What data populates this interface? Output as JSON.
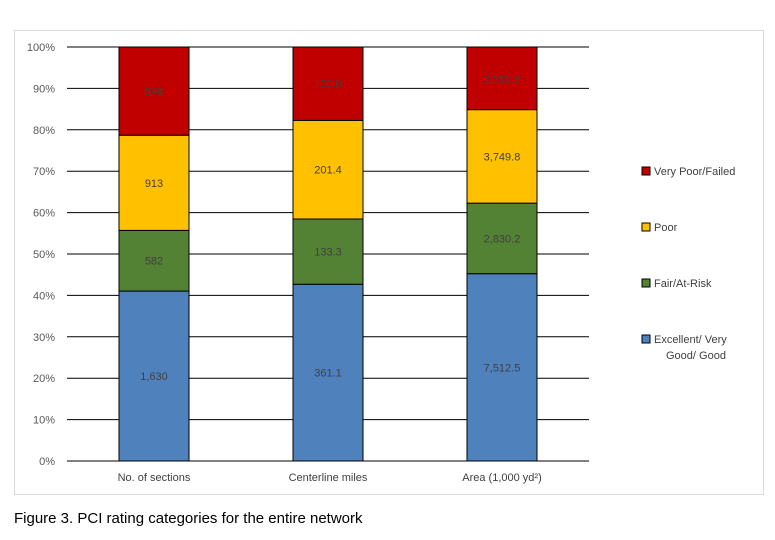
{
  "caption": "Figure 3. PCI rating categories for the entire network",
  "chart_data": {
    "type": "bar",
    "stacked": true,
    "normalized": true,
    "categories": [
      "No. of sections",
      "Centerline miles",
      "Area (1,000 yd²)"
    ],
    "series": [
      {
        "name": "Excellent/ Very Good/ Good",
        "color": "#4f81bd",
        "values": [
          1630,
          361.1,
          7512.5
        ],
        "labels": [
          "1,630",
          "361.1",
          "7,512.5"
        ]
      },
      {
        "name": "Fair/At-Risk",
        "color": "#548235",
        "values": [
          582,
          133.3,
          2830.2
        ],
        "labels": [
          "582",
          "133.3",
          "2,830.2"
        ]
      },
      {
        "name": "Poor",
        "color": "#ffc000",
        "values": [
          913,
          201.4,
          3749.8
        ],
        "labels": [
          "913",
          "201.4",
          "3,749.8"
        ]
      },
      {
        "name": "Very Poor/Failed",
        "color": "#c00000",
        "values": [
          846,
          150.0,
          2512.6
        ],
        "labels": [
          "846",
          "150.0",
          "2,512.6"
        ]
      }
    ],
    "y_ticks": [
      "0%",
      "10%",
      "20%",
      "30%",
      "40%",
      "50%",
      "60%",
      "70%",
      "80%",
      "90%",
      "100%"
    ],
    "ylim": [
      0,
      100
    ],
    "grid": true,
    "legend_position": "right",
    "legend_order": [
      3,
      2,
      1,
      0
    ],
    "legend_label_lines": [
      [
        "Very Poor/Failed"
      ],
      [
        "Poor"
      ],
      [
        "Fair/At-Risk"
      ],
      [
        "Excellent/ Very",
        "Good/ Good"
      ]
    ]
  }
}
